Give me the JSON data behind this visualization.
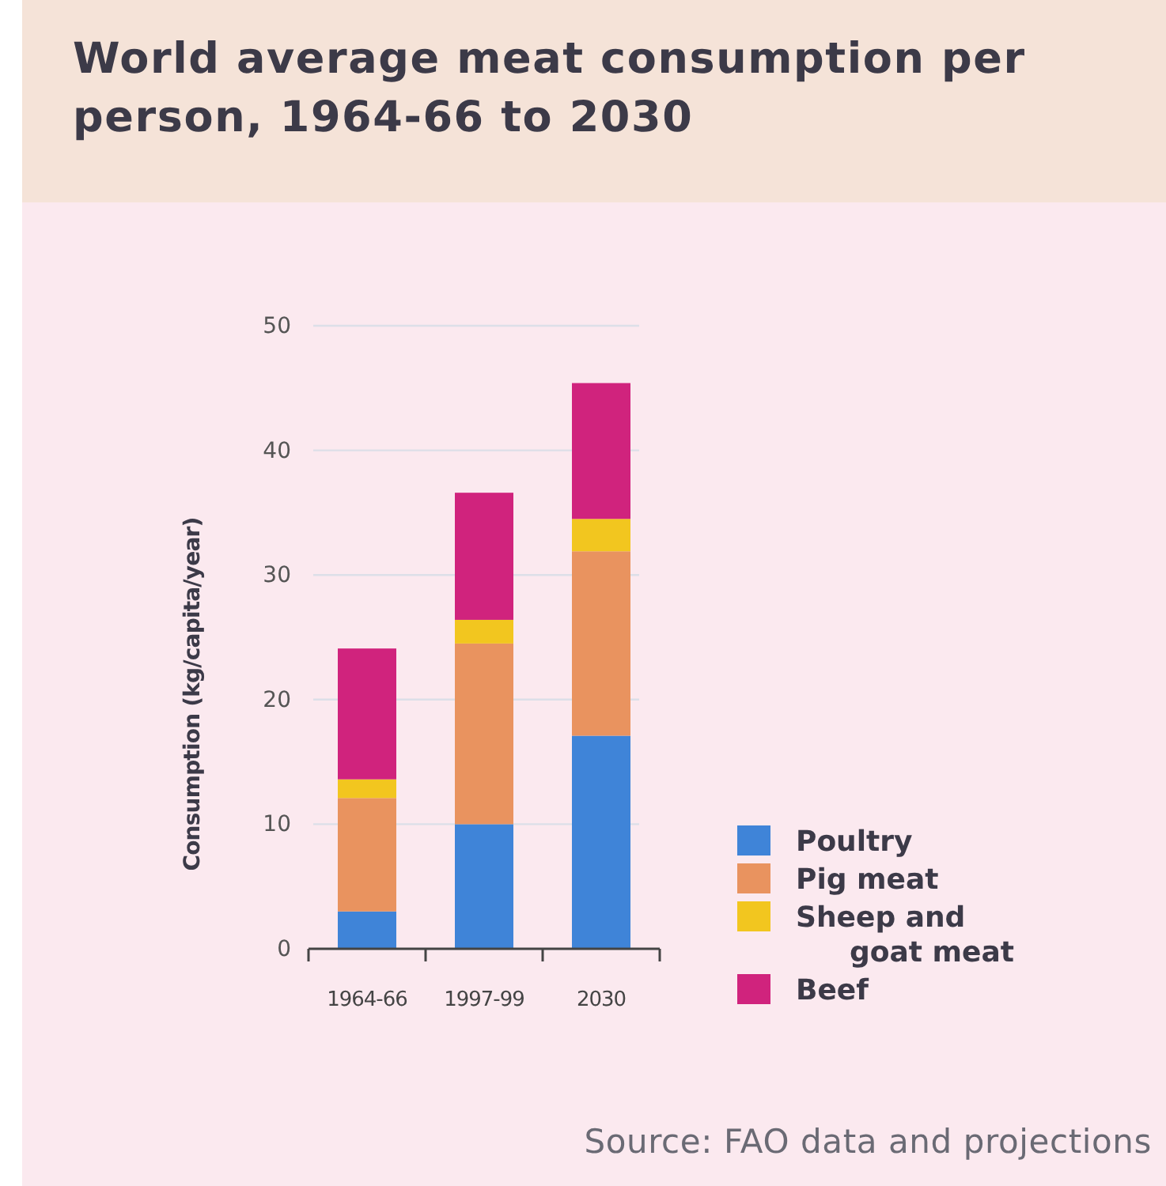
{
  "chart_data": {
    "type": "bar",
    "title": "World average meat consumption per person, 1964-66 to 2030",
    "ylabel": "Consumption (kg/capita/year)",
    "categories": [
      "1964-66",
      "1997-99",
      "2030"
    ],
    "series": [
      {
        "name": "Poultry",
        "color": "#3f84d8",
        "values": [
          3.0,
          10.0,
          17.1
        ]
      },
      {
        "name": "Pig meat",
        "color": "#e9935f",
        "values": [
          9.1,
          14.5,
          14.8
        ]
      },
      {
        "name": "Sheep and goat meat",
        "color": "#f2c61f",
        "values": [
          1.5,
          1.9,
          2.6
        ]
      },
      {
        "name": "Beef",
        "color": "#d0237d",
        "values": [
          10.5,
          10.2,
          10.9
        ]
      }
    ],
    "stacked": true,
    "ylim": [
      0,
      50
    ],
    "yticks": [
      0,
      10,
      20,
      30,
      40,
      50
    ],
    "grid": "y",
    "legend": "bottom right",
    "annotations": [
      "Source: FAO data and projections"
    ]
  }
}
